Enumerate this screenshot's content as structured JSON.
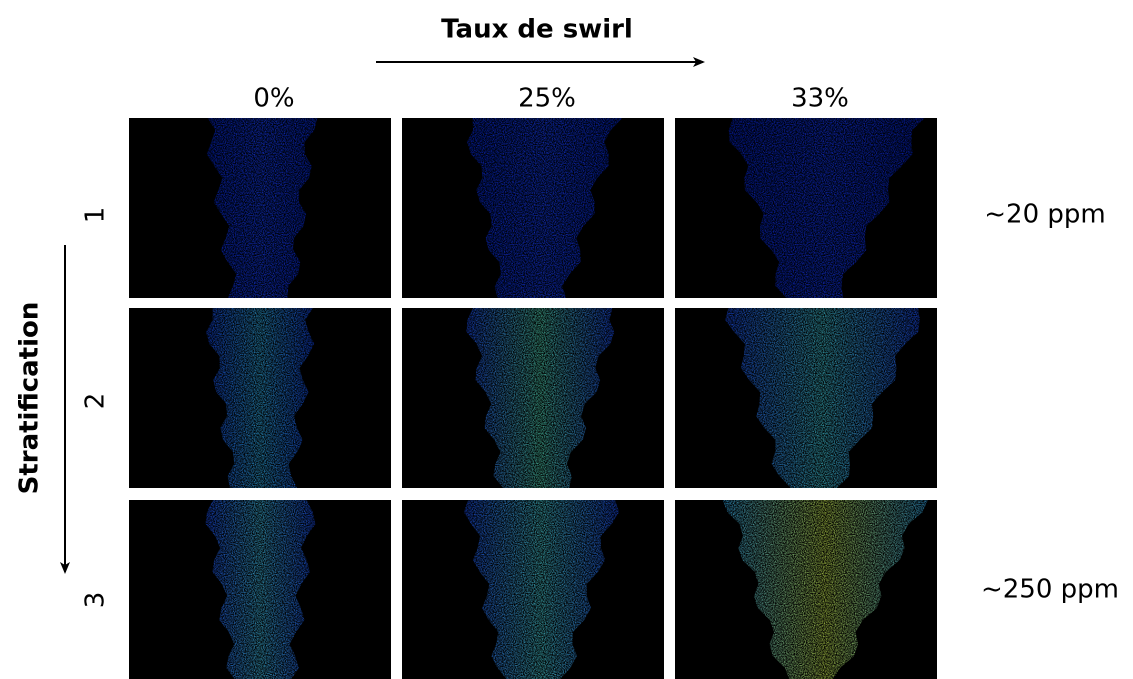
{
  "header": {
    "title": "Taux de swirl"
  },
  "columns": [
    "0%",
    "25%",
    "33%"
  ],
  "axis_label": "Stratification",
  "rows": [
    "1",
    "2",
    "3"
  ],
  "annotations": [
    "~20 ppm",
    "~250 ppm"
  ]
}
